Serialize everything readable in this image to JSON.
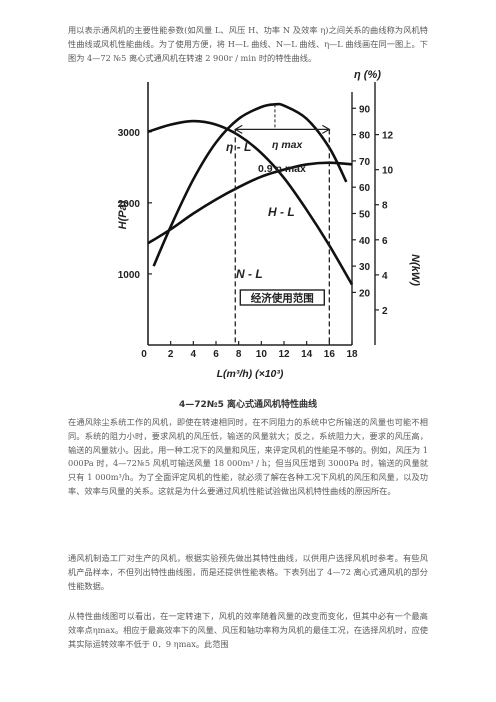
{
  "intro_text": "用以表示通风机的主要性能参数(如风量 L、风压 H、功率 N 及效率 η)之间关系的曲线称为风机特性曲线或风机性能曲线。为了使用方便，将 H—L 曲线、N—L 曲线、η—L 曲线画在同一图上。下图为 4—72 №5 离心式通风机在转速 2 900r / min 时的特性曲线。",
  "figure_caption": "4—72№5 离心式通风机特性曲线",
  "para2": "在通风除尘系统工作的风机，即使在转速相同时，在不同阻力的系统中它所输送的风量也可能不相同。系统的阻力小时，要求风机的风压低，输送的风量就大；反之，系统阻力大，要求的风压高，输送的风量就小。因此，用一种工况下的风量和风压，来评定风机的性能是不够的。例如，风压为 1 000Pa 时，4—72№5 风机可输送风量 18 000m³ / h；但当风压增到 3000Pa 时，输送的风量就只有 1 000m³/h。为了全面评定风机的性能，就必须了解在各种工况下风机的风压和风量，以及功率、效率与风量的关系。这就是为什么要通过风机性能试验做出风机特性曲线的原因所在。",
  "para3": "通风机制造工厂对生产的风机，根据实验预先做出其特性曲线，以供用户选择风机时参考。有些风机产品样本，不但列出特性曲线图，而是还提供性能表格。下表列出了 4—72 离心式通风机的部分性能数据。",
  "para4": "从特性曲线图可以看出，在一定转速下，风机的效率随着风量的改变而变化，但其中必有一个最高效率点ηmax。相应于最高效率下的风量、风压和轴功率称为风机的最佳工况，在选择风机时，应使其实际运转效率不低于 0．9 ηmax。此范围",
  "chart_data": {
    "type": "line",
    "title": "",
    "xlabel": "L(m³/h) (×10³)",
    "ylabel_left": "H(Pa)",
    "ylabel_right_outer": "η (%)",
    "ylabel_right_inner": "N(kW)",
    "x_ticks": [
      "0",
      "2",
      "4",
      "6",
      "8",
      "10",
      "12",
      "14",
      "16",
      "18"
    ],
    "h_ticks": [
      "1000",
      "2000",
      "3000"
    ],
    "eta_ticks": [
      "20",
      "30",
      "40",
      "50",
      "60",
      "70",
      "80",
      "90"
    ],
    "n_ticks": [
      "2",
      "4",
      "6",
      "8",
      "10",
      "12"
    ],
    "xlim": [
      0,
      18
    ],
    "hlim": [
      0,
      3700
    ],
    "etalim": [
      0,
      100
    ],
    "nlim": [
      0,
      15
    ],
    "annotations": {
      "eta_max": "η max",
      "point_nine": "0.9 η max",
      "eta_curve": "η - L",
      "h_curve": "H - L",
      "n_curve": "N - L",
      "economic_range": "经济使用范围"
    },
    "economic_range": [
      7.7,
      16.0
    ],
    "series": [
      {
        "name": "H - L",
        "axis": "h",
        "x": [
          0,
          2,
          4,
          6,
          8,
          10,
          12,
          14,
          16,
          18
        ],
        "y": [
          3000,
          3100,
          3150,
          3100,
          2950,
          2700,
          2350,
          1900,
          1400,
          850
        ]
      },
      {
        "name": "η - L",
        "axis": "eta",
        "x": [
          0.5,
          2,
          4,
          6,
          8,
          10,
          11.2,
          12,
          14,
          16,
          17.5
        ],
        "y": [
          30,
          45,
          63,
          77,
          86,
          90.5,
          91.5,
          91,
          86,
          75,
          62
        ]
      },
      {
        "name": "N - L",
        "axis": "n",
        "x": [
          0,
          2,
          4,
          6,
          8,
          10,
          12,
          14,
          16,
          18
        ],
        "y": [
          5.8,
          6.6,
          7.5,
          8.3,
          9.0,
          9.6,
          10.0,
          10.3,
          10.4,
          10.3
        ]
      }
    ]
  }
}
